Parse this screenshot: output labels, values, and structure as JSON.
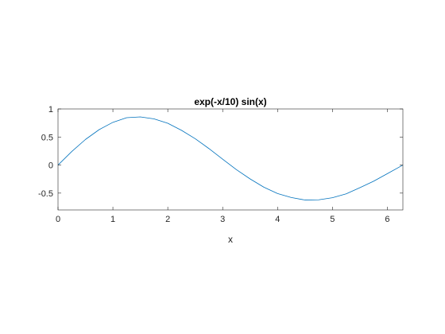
{
  "chart_data": {
    "type": "line",
    "title": "exp(-x/10) sin(x)",
    "xlabel": "x",
    "ylabel": "",
    "xlim": [
      0,
      6.283185307179586
    ],
    "ylim": [
      -0.8,
      1
    ],
    "xticks": [
      0,
      1,
      2,
      3,
      4,
      5,
      6
    ],
    "xtick_labels": [
      "0",
      "1",
      "2",
      "3",
      "4",
      "5",
      "6"
    ],
    "yticks": [
      -0.5,
      0,
      0.5,
      1
    ],
    "ytick_labels": [
      "-0.5",
      "0",
      "0.5",
      "1"
    ],
    "grid": false,
    "series": [
      {
        "name": "exp(-x/10) sin(x)",
        "color": "#0072bd",
        "x": [
          0,
          0.25,
          0.5,
          0.75,
          1,
          1.25,
          1.5,
          1.75,
          2,
          2.25,
          2.5,
          2.75,
          3,
          3.25,
          3.5,
          3.75,
          4,
          4.25,
          4.5,
          4.75,
          5,
          5.25,
          5.5,
          5.75,
          6,
          6.283
        ],
        "y": [
          0,
          0.2413,
          0.456,
          0.6313,
          0.7614,
          0.8439,
          0.8586,
          0.8227,
          0.7445,
          0.6192,
          0.4697,
          0.2932,
          0.1045,
          -0.0817,
          -0.2472,
          -0.3947,
          -0.5073,
          -0.5788,
          -0.6234,
          -0.6193,
          -0.5816,
          -0.5136,
          -0.4039,
          -0.2877,
          -0.1534,
          0.0
        ]
      }
    ]
  }
}
